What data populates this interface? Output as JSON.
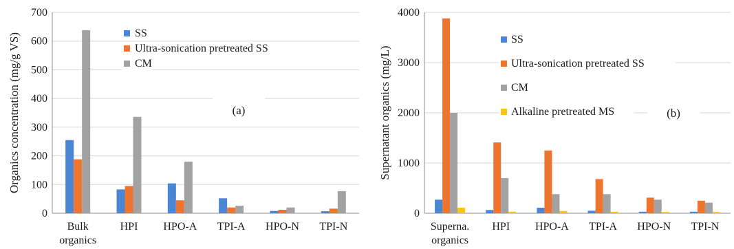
{
  "colors": {
    "SS": "#4a86d4",
    "Ultra-sonication pretreated SS": "#ee7530",
    "CM": "#a2a2a2",
    "Alkaline pretreated MS": "#f9c412",
    "grid": "#d6d6d6",
    "axis": "#8c8c8c"
  },
  "chart_data": [
    {
      "type": "bar",
      "panel_label": "(a)",
      "ylabel": "Organics concentration (mg/g VS)",
      "ylim": [
        0,
        700
      ],
      "yticks": [
        0,
        100,
        200,
        300,
        400,
        500,
        600,
        700
      ],
      "grid": true,
      "legend_position": "top-left",
      "categories": [
        [
          "Bulk",
          "organics"
        ],
        [
          "HPI"
        ],
        [
          "HPO-A"
        ],
        [
          "TPI-A"
        ],
        [
          "HPO-N"
        ],
        [
          "TPI-N"
        ]
      ],
      "series": [
        {
          "name": "SS",
          "values": [
            255,
            83,
            104,
            52,
            8,
            7
          ]
        },
        {
          "name": "Ultra-sonication pretreated SS",
          "values": [
            188,
            95,
            45,
            20,
            12,
            16
          ]
        },
        {
          "name": "CM",
          "values": [
            638,
            336,
            180,
            26,
            20,
            77
          ]
        }
      ]
    },
    {
      "type": "bar",
      "panel_label": "(b)",
      "ylabel": "Supernatant organics (mg/L)",
      "ylim": [
        0,
        4000
      ],
      "yticks": [
        0,
        1000,
        2000,
        3000,
        4000
      ],
      "grid": true,
      "legend_position": "top-left",
      "categories": [
        [
          "Superna.",
          "organics"
        ],
        [
          "HPI"
        ],
        [
          "HPO-A"
        ],
        [
          "TPI-A"
        ],
        [
          "HPO-N"
        ],
        [
          "TPI-N"
        ]
      ],
      "series": [
        {
          "name": "SS",
          "values": [
            270,
            65,
            110,
            50,
            30,
            30
          ]
        },
        {
          "name": "Ultra-sonication pretreated SS",
          "values": [
            3880,
            1410,
            1250,
            680,
            310,
            250
          ]
        },
        {
          "name": "CM",
          "values": [
            2000,
            700,
            380,
            380,
            270,
            210
          ]
        },
        {
          "name": "Alkaline pretreated MS",
          "values": [
            110,
            30,
            45,
            30,
            25,
            25
          ]
        }
      ]
    }
  ]
}
